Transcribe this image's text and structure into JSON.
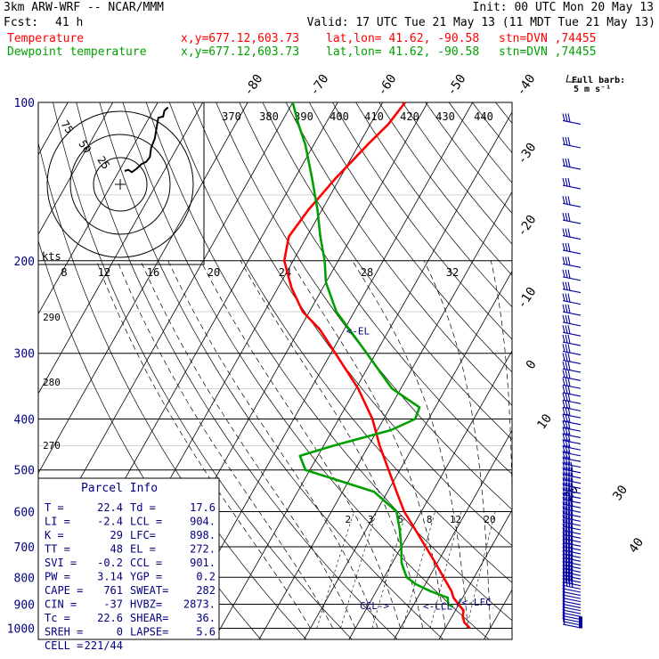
{
  "header": {
    "model": "3km ARW-WRF -- NCAR/MMM",
    "init": "Init: 00 UTC Mon 20 May 13",
    "fcst_label": "Fcst:",
    "fcst_value": "41 h",
    "valid": "Valid: 17 UTC Tue 21 May 13 (11 MDT Tue 21 May 13)"
  },
  "legend": [
    {
      "name": "Temperature",
      "color": "#ff0000",
      "xy": "x,y=677.12,603.73",
      "latlon": "lat,lon= 41.62, -90.58",
      "stn": "stn=DVN ,74455"
    },
    {
      "name": "Dewpoint temperature",
      "color": "#00a000",
      "xy": "x,y=677.12,603.73",
      "latlon": "lat,lon= 41.62, -90.58",
      "stn": "stn=DVN ,74455"
    }
  ],
  "wind_key": {
    "line1": "Full barb:",
    "line2": "5 m s⁻¹"
  },
  "hodograph": {
    "ring_labels": [
      "25",
      "50",
      "75"
    ],
    "kts_label": "kts"
  },
  "parcel_info": {
    "title": "Parcel Info",
    "rows": [
      [
        "T  =",
        "22.4",
        "Td =",
        "17.6"
      ],
      [
        "LI =",
        "-2.4",
        "LCL =",
        "904."
      ],
      [
        "K  =",
        "29",
        "LFC=",
        "898."
      ],
      [
        "TT =",
        "48",
        "EL =",
        "272."
      ],
      [
        "SVI =",
        "-0.2",
        "CCL =",
        "901."
      ],
      [
        "PW =",
        "3.14",
        "YGP =",
        "0.2"
      ],
      [
        "CAPE =",
        "761",
        "SWEAT=",
        "282"
      ],
      [
        "CIN =",
        "-37",
        "HVBZ=",
        "2873."
      ],
      [
        "Tc =",
        "22.6",
        "SHEAR=",
        "36."
      ],
      [
        "SREH =",
        "0",
        "LAPSE=",
        "5.6"
      ],
      [
        "CELL =",
        "221/44",
        "",
        ""
      ]
    ]
  },
  "level_markers": {
    "el": "<-EL",
    "ccl": "CCL->",
    "lcl": "<-LCL",
    "lfc": "/<-LFC"
  },
  "colors": {
    "temperature": "#ff0000",
    "dewpoint": "#00a000",
    "text_header": "#000000",
    "label_blue": "#000080",
    "grid": "#000000"
  },
  "chart_data": {
    "type": "line",
    "subtype": "skew-T log-P sounding",
    "y_axis": {
      "scale": "log",
      "ticks": [
        100,
        200,
        300,
        400,
        500,
        600,
        700,
        800,
        900,
        1000
      ],
      "unit": "hPa"
    },
    "isotherm_labels": [
      "-80",
      "-70",
      "-60",
      "-50",
      "-40",
      "-30",
      "-20",
      "-10",
      "0",
      "10",
      "20",
      "30",
      "40"
    ],
    "theta_labels": [
      "370",
      "380",
      "390",
      "400",
      "410",
      "420",
      "430",
      "440"
    ],
    "mixing_ratio_labels": [
      "2",
      "3",
      "5",
      "8",
      "12",
      "20"
    ],
    "theta_e_labels_left": [
      "290",
      "280",
      "270"
    ],
    "hodo_speed_labels": [
      "8",
      "12",
      "16",
      "20",
      "24",
      "28",
      "32"
    ],
    "series": [
      {
        "name": "Temperature",
        "p": [
          1000,
          975,
          950,
          925,
          900,
          875,
          850,
          800,
          750,
          700,
          650,
          600,
          550,
          500,
          450,
          400,
          350,
          300,
          270,
          250,
          225,
          200,
          180,
          160,
          140,
          120,
          110,
          100
        ],
        "t": [
          25.5,
          23.5,
          22.4,
          21.8,
          19.9,
          18.0,
          16.7,
          13.2,
          9.5,
          5.4,
          1.0,
          -3.8,
          -8.0,
          -12.5,
          -17.5,
          -22.5,
          -29.5,
          -39.0,
          -45.5,
          -51.5,
          -57.0,
          -62.0,
          -64.0,
          -63.0,
          -61.0,
          -58.0,
          -56.0,
          -55.0
        ]
      },
      {
        "name": "Dewpoint temperature",
        "p": [
          910,
          900,
          875,
          850,
          825,
          800,
          775,
          750,
          700,
          650,
          600,
          550,
          500,
          470,
          450,
          420,
          400,
          380,
          350,
          300,
          250,
          220,
          200,
          180,
          160,
          140,
          120,
          110,
          100
        ],
        "t": [
          19.0,
          17.6,
          16.7,
          12.0,
          8.0,
          5.0,
          3.5,
          2.0,
          0.0,
          -2.5,
          -5.5,
          -13.0,
          -31.0,
          -34.0,
          -28.0,
          -17.0,
          -13.0,
          -13.5,
          -22.0,
          -32.0,
          -44.0,
          -50.0,
          -53.0,
          -57.0,
          -61.0,
          -66.0,
          -72.0,
          -76.0,
          -80.0
        ]
      }
    ],
    "hodograph_trace": [
      [
        0,
        0
      ],
      [
        3,
        1
      ],
      [
        6,
        -1
      ],
      [
        10,
        2
      ],
      [
        14,
        6
      ],
      [
        18,
        8
      ],
      [
        21,
        12
      ],
      [
        22,
        20
      ],
      [
        25,
        28
      ],
      [
        26,
        34
      ],
      [
        27,
        40
      ],
      [
        28,
        46
      ],
      [
        32,
        47
      ],
      [
        33,
        52
      ],
      [
        36,
        55
      ]
    ],
    "grid": true
  }
}
